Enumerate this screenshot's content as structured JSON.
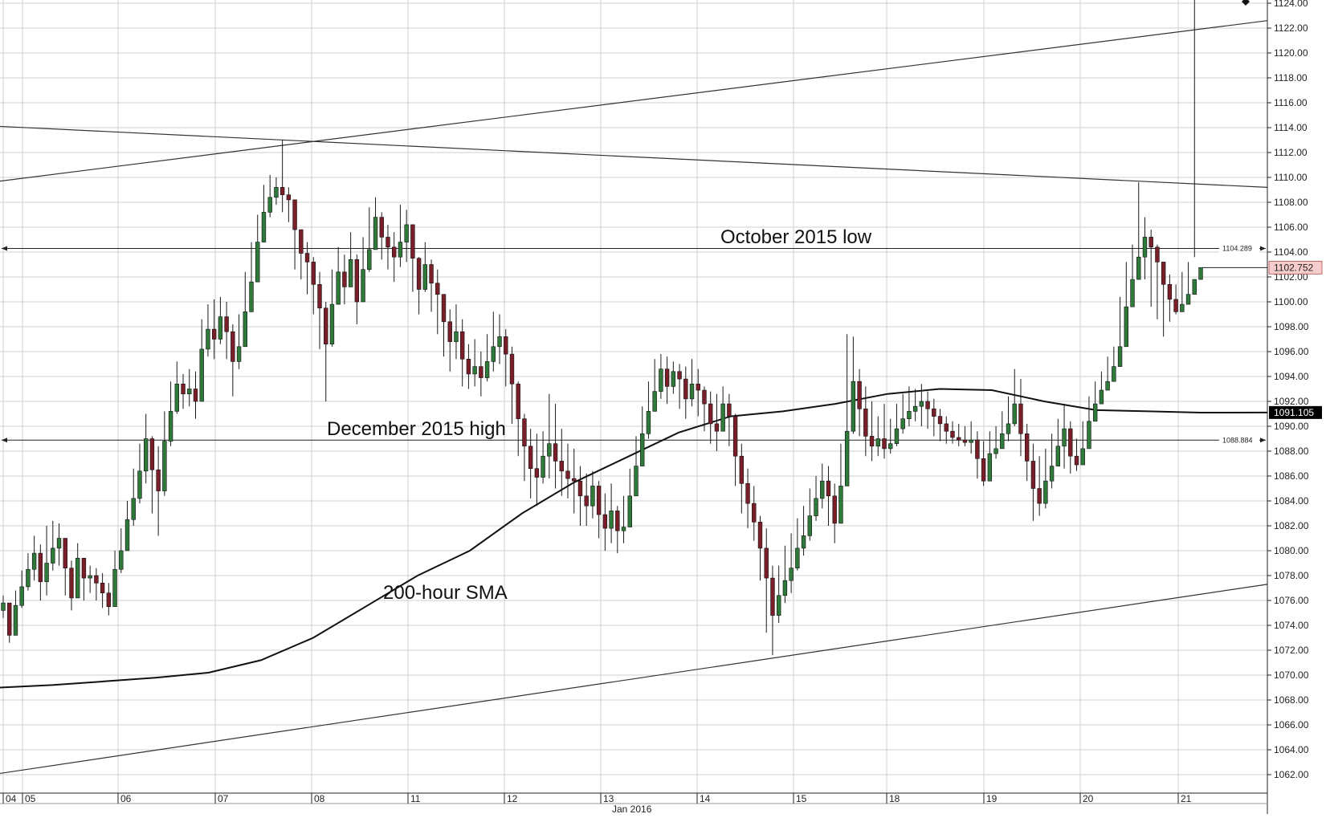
{
  "chart_data": {
    "type": "candlestick",
    "ylim": [
      1060,
      1124
    ],
    "y_ticks": [
      "1062.00",
      "1064.00",
      "1066.00",
      "1068.00",
      "1070.00",
      "1072.00",
      "1074.00",
      "1076.00",
      "1078.00",
      "1080.00",
      "1082.00",
      "1084.00",
      "1086.00",
      "1088.00",
      "1090.00",
      "1092.00",
      "1094.00",
      "1096.00",
      "1098.00",
      "1100.00",
      "1102.00",
      "1104.00",
      "1106.00",
      "1108.00",
      "1110.00",
      "1112.00",
      "1114.00",
      "1116.00",
      "1118.00",
      "1120.00",
      "1122.00",
      "1124.00"
    ],
    "x_ticks": [
      "04",
      "05",
      "06",
      "07",
      "08",
      "11",
      "12",
      "13",
      "14",
      "15",
      "18",
      "19",
      "20",
      "21"
    ],
    "x_axis_label": "Jan 2016",
    "horizontal_levels": [
      {
        "label": "1104.289",
        "value": 1104.289,
        "annotation": "October 2015 low"
      },
      {
        "label": "1088.884",
        "value": 1088.884,
        "annotation": "December 2015 high"
      }
    ],
    "sma": {
      "annotation": "200-hour SMA",
      "current_label": "1091.105",
      "values": [
        1069.0,
        1069.2,
        1069.5,
        1069.8,
        1070.2,
        1071.2,
        1073.0,
        1075.5,
        1078.0,
        1080.0,
        1083.0,
        1085.5,
        1087.5,
        1089.5,
        1090.8,
        1091.2,
        1091.8,
        1092.6,
        1093.0,
        1092.9,
        1092.0,
        1091.3,
        1091.2,
        1091.1
      ]
    },
    "last_price": {
      "label": "1102.752",
      "value": 1102.752
    },
    "trendlines": [
      {
        "name": "upper-rising",
        "from": [
          0,
          1109.7
        ],
        "to": [
          1,
          1122.6
        ]
      },
      {
        "name": "upper-falling",
        "from": [
          0,
          1114.1
        ],
        "to": [
          1,
          1109.2
        ]
      },
      {
        "name": "lower-rising",
        "from": [
          0,
          1062.1
        ],
        "to": [
          1,
          1077.3
        ]
      }
    ],
    "hourly_closes": [
      1075.8,
      1073.2,
      1075.6,
      1077.1,
      1078.5,
      1079.8,
      1077.5,
      1079.0,
      1080.2,
      1081.0,
      1078.6,
      1076.2,
      1079.4,
      1077.8,
      1078.0,
      1077.4,
      1076.6,
      1075.5,
      1078.5,
      1080.0,
      1082.5,
      1084.2,
      1086.4,
      1089.0,
      1086.5,
      1084.8,
      1088.8,
      1091.2,
      1093.4,
      1092.6,
      1093.0,
      1092.0,
      1096.2,
      1097.8,
      1097.0,
      1098.8,
      1097.6,
      1095.2,
      1096.4,
      1099.2,
      1101.6,
      1104.8,
      1107.2,
      1108.4,
      1109.2,
      1108.6,
      1108.2,
      1105.8,
      1103.9,
      1103.2,
      1101.4,
      1099.5,
      1096.6,
      1099.8,
      1102.4,
      1101.2,
      1103.4,
      1100.0,
      1102.6,
      1104.2,
      1106.8,
      1105.2,
      1104.4,
      1103.6,
      1104.8,
      1106.2,
      1103.5,
      1101.0,
      1103.0,
      1101.5,
      1100.6,
      1098.4,
      1096.8,
      1097.6,
      1095.4,
      1094.2,
      1094.8,
      1093.9,
      1095.2,
      1096.4,
      1097.2,
      1095.8,
      1093.4,
      1090.6,
      1088.4,
      1086.6,
      1085.9,
      1087.6,
      1088.6,
      1087.2,
      1086.4,
      1085.8,
      1085.6,
      1084.4,
      1083.6,
      1085.2,
      1082.9,
      1081.8,
      1083.2,
      1081.6,
      1081.9,
      1084.4,
      1086.8,
      1089.4,
      1091.2,
      1092.8,
      1094.6,
      1093.2,
      1094.4,
      1093.8,
      1092.2,
      1093.4,
      1092.9,
      1091.8,
      1090.2,
      1089.6,
      1091.8,
      1090.8,
      1087.6,
      1085.4,
      1083.8,
      1082.3,
      1080.2,
      1077.8,
      1074.8,
      1076.4,
      1077.6,
      1078.6,
      1080.2,
      1081.2,
      1082.8,
      1084.2,
      1085.6,
      1084.4,
      1082.2,
      1085.2,
      1089.6,
      1093.6,
      1091.4,
      1089.2,
      1088.4,
      1089.0,
      1088.2,
      1088.6,
      1089.8,
      1090.6,
      1091.2,
      1091.6,
      1092.0,
      1091.4,
      1090.8,
      1090.2,
      1089.6,
      1089.1,
      1088.9,
      1088.7,
      1088.9,
      1087.4,
      1085.6,
      1087.8,
      1088.2,
      1089.4,
      1090.2,
      1091.8,
      1089.4,
      1087.2,
      1085.0,
      1083.8,
      1085.6,
      1086.8,
      1088.4,
      1089.8,
      1087.6,
      1086.9,
      1088.2,
      1090.4,
      1091.8,
      1092.9,
      1093.6,
      1094.8,
      1096.4,
      1099.6,
      1101.8,
      1103.6,
      1105.2,
      1104.4,
      1103.2,
      1101.4,
      1100.2,
      1099.2,
      1099.8,
      1100.6,
      1101.8,
      1102.752
    ],
    "hourly_highs": [
      1076.4,
      1075.6,
      1076.8,
      1078.4,
      1079.8,
      1081.2,
      1080.5,
      1082.0,
      1082.4,
      1082.2,
      1081.0,
      1079.2,
      1080.6,
      1079.4,
      1078.8,
      1078.6,
      1078.2,
      1077.4,
      1080.0,
      1081.8,
      1084.0,
      1086.6,
      1088.6,
      1091.0,
      1089.2,
      1088.4,
      1091.2,
      1093.6,
      1095.2,
      1094.2,
      1094.6,
      1094.4,
      1098.6,
      1099.8,
      1100.2,
      1100.4,
      1100.0,
      1098.2,
      1099.0,
      1102.4,
      1104.8,
      1107.0,
      1109.4,
      1110.2,
      1110.0,
      1113.0,
      1109.2,
      1107.6,
      1105.4,
      1104.8,
      1103.6,
      1102.4,
      1100.0,
      1102.6,
      1104.4,
      1103.8,
      1105.6,
      1103.8,
      1105.2,
      1107.6,
      1108.4,
      1107.2,
      1106.2,
      1105.6,
      1107.8,
      1107.4,
      1106.0,
      1103.6,
      1104.8,
      1103.4,
      1102.6,
      1100.6,
      1099.4,
      1099.8,
      1098.6,
      1096.6,
      1097.0,
      1096.0,
      1097.4,
      1099.2,
      1099.0,
      1097.8,
      1096.4,
      1093.6,
      1091.0,
      1089.8,
      1089.4,
      1089.6,
      1092.6,
      1091.8,
      1089.8,
      1088.6,
      1088.2,
      1086.8,
      1086.2,
      1086.4,
      1085.6,
      1084.6,
      1085.4,
      1083.6,
      1084.4,
      1086.6,
      1089.2,
      1091.6,
      1093.6,
      1095.4,
      1095.8,
      1095.6,
      1095.2,
      1095.0,
      1094.8,
      1095.4,
      1094.6,
      1093.2,
      1092.8,
      1092.6,
      1093.2,
      1092.6,
      1091.0,
      1088.6,
      1086.6,
      1085.2,
      1082.8,
      1081.8,
      1078.8,
      1078.8,
      1080.4,
      1081.4,
      1082.6,
      1083.6,
      1085.0,
      1086.0,
      1087.0,
      1086.8,
      1085.4,
      1088.6,
      1097.4,
      1097.2,
      1094.6,
      1093.2,
      1092.0,
      1090.8,
      1091.8,
      1090.6,
      1091.8,
      1092.6,
      1093.2,
      1093.0,
      1093.4,
      1092.8,
      1092.2,
      1091.4,
      1090.8,
      1090.4,
      1090.2,
      1090.0,
      1090.4,
      1089.6,
      1088.8,
      1089.6,
      1090.0,
      1091.2,
      1092.4,
      1094.6,
      1093.8,
      1090.2,
      1088.6,
      1087.6,
      1088.2,
      1089.4,
      1090.6,
      1091.8,
      1090.4,
      1089.0,
      1090.4,
      1092.4,
      1093.6,
      1094.4,
      1095.6,
      1096.4,
      1100.4,
      1103.2,
      1104.6,
      1109.6,
      1106.8,
      1105.8,
      1104.6,
      1103.2,
      1102.2,
      1101.4,
      1102.4,
      1103.2,
      1103.6
    ],
    "hourly_lows": [
      1074.6,
      1072.6,
      1073.4,
      1075.4,
      1076.8,
      1077.6,
      1076.0,
      1076.4,
      1078.4,
      1078.8,
      1076.4,
      1075.2,
      1076.8,
      1076.0,
      1076.6,
      1076.0,
      1075.4,
      1074.8,
      1076.4,
      1078.2,
      1080.4,
      1082.0,
      1083.8,
      1085.4,
      1083.0,
      1081.2,
      1084.4,
      1088.4,
      1091.0,
      1091.4,
      1091.6,
      1090.6,
      1092.8,
      1095.6,
      1095.4,
      1096.6,
      1095.4,
      1092.4,
      1094.6,
      1096.8,
      1099.4,
      1102.0,
      1104.8,
      1106.8,
      1107.8,
      1107.2,
      1106.4,
      1102.6,
      1101.8,
      1100.6,
      1099.0,
      1096.2,
      1092.0,
      1096.4,
      1099.8,
      1099.8,
      1101.8,
      1098.2,
      1100.2,
      1102.4,
      1104.2,
      1103.4,
      1102.6,
      1101.6,
      1102.8,
      1103.2,
      1100.8,
      1099.0,
      1100.8,
      1099.2,
      1097.4,
      1095.6,
      1094.4,
      1095.4,
      1093.2,
      1093.0,
      1093.2,
      1092.4,
      1093.6,
      1094.4,
      1095.0,
      1093.2,
      1090.2,
      1087.6,
      1085.6,
      1084.2,
      1083.6,
      1085.4,
      1085.8,
      1085.0,
      1084.4,
      1084.2,
      1083.0,
      1082.0,
      1082.0,
      1082.6,
      1081.0,
      1080.0,
      1080.6,
      1079.8,
      1080.6,
      1082.8,
      1084.6,
      1087.0,
      1089.0,
      1091.2,
      1092.2,
      1091.8,
      1092.6,
      1091.4,
      1090.6,
      1091.6,
      1090.8,
      1089.6,
      1088.6,
      1088.0,
      1089.6,
      1088.4,
      1085.2,
      1083.0,
      1081.8,
      1080.8,
      1077.6,
      1073.4,
      1071.6,
      1074.2,
      1075.8,
      1076.6,
      1078.4,
      1079.6,
      1080.8,
      1082.4,
      1083.4,
      1082.0,
      1080.6,
      1082.8,
      1086.8,
      1089.4,
      1089.2,
      1087.6,
      1087.2,
      1087.6,
      1087.4,
      1087.8,
      1088.4,
      1089.4,
      1090.0,
      1090.4,
      1090.0,
      1089.8,
      1089.2,
      1088.8,
      1088.6,
      1088.6,
      1088.4,
      1088.4,
      1087.8,
      1085.8,
      1085.2,
      1085.8,
      1087.4,
      1088.2,
      1088.8,
      1090.0,
      1087.6,
      1085.6,
      1082.4,
      1082.8,
      1083.4,
      1085.0,
      1086.8,
      1086.6,
      1086.2,
      1086.4,
      1087.8,
      1089.4,
      1091.4,
      1092.4,
      1093.2,
      1094.8,
      1097.8,
      1099.4,
      1101.2,
      1102.4,
      1101.8,
      1099.6,
      1098.6,
      1097.2,
      1098.4,
      1099.0,
      1100.2,
      1101.4
    ]
  },
  "colors": {
    "up_candle": "#2f7a3b",
    "down_candle": "#7a1f2a",
    "wick": "#1a1a1a",
    "sma_line": "#111111",
    "trendline": "#333333",
    "level_line": "#222222",
    "last_price_bg": "#f6cccc",
    "sma_label_bg": "#000000",
    "grid": "#cfcfcf"
  }
}
